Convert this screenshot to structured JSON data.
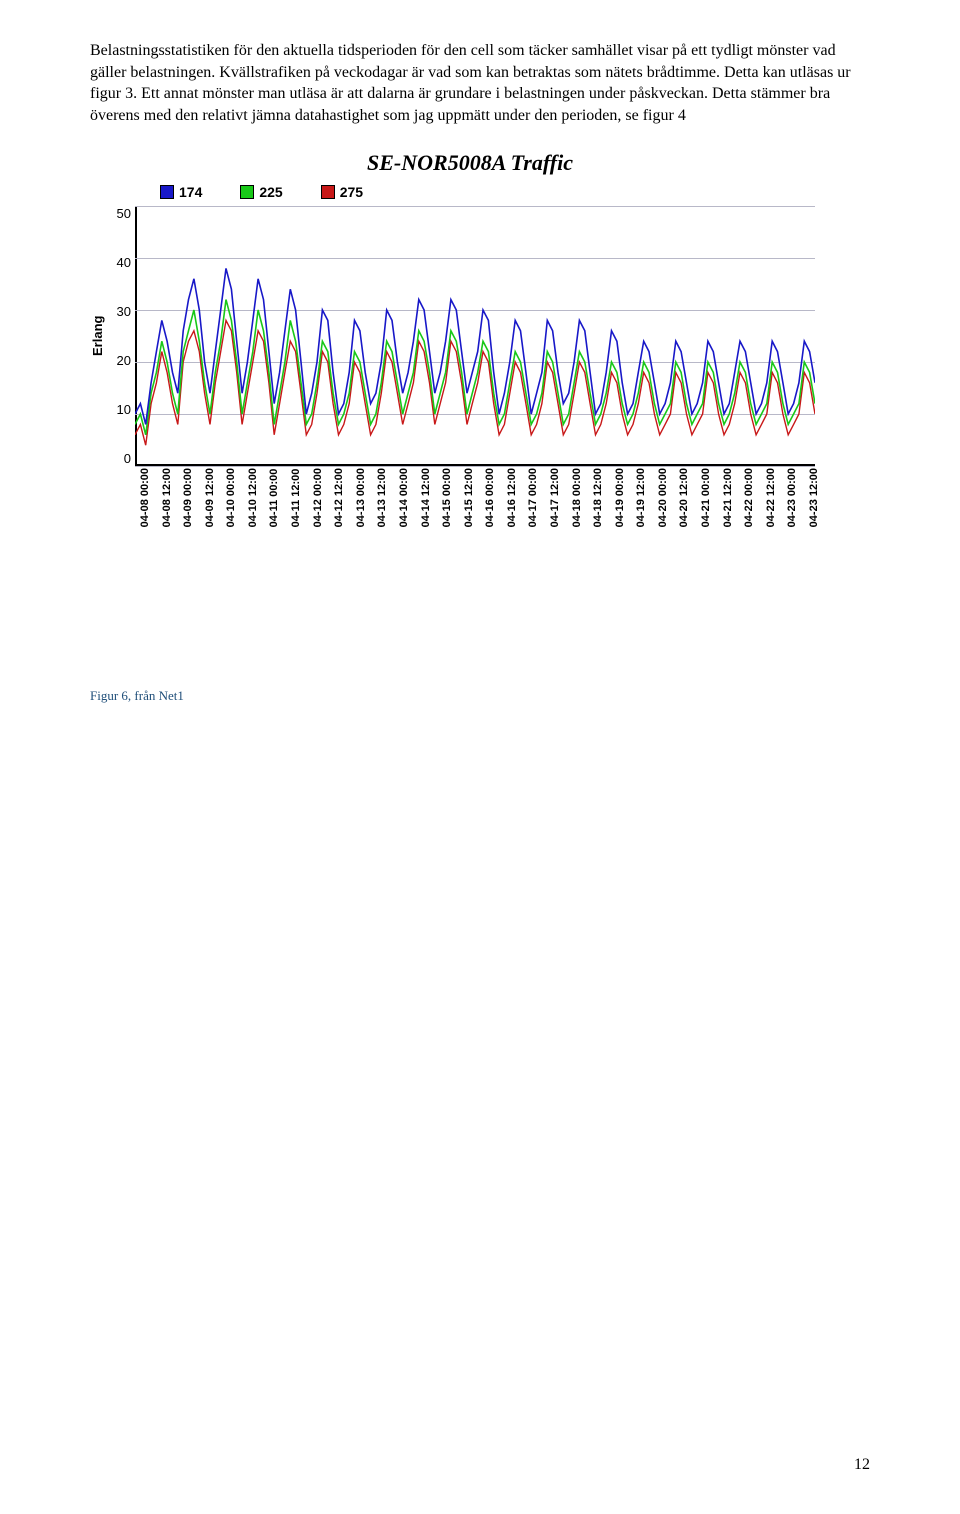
{
  "paragraph": "Belastningsstatistiken för den aktuella tidsperioden för den cell som täcker samhället visar på ett tydligt mönster vad gäller belastningen. Kvällstrafiken på veckodagar är vad som kan betraktas som nätets brådtimme. Detta kan utläsas ur figur 3. Ett annat mönster man utläsa är att dalarna är grundare i belastningen under påskveckan. Detta stämmer bra överens med den relativt jämna datahastighet som jag uppmätt under den perioden, se figur 4",
  "chart": {
    "title": "SE-NOR5008A Traffic",
    "ylabel": "Erlang",
    "ylim": [
      0,
      50
    ],
    "ytick_step": 10,
    "yticks": [
      "50",
      "40",
      "30",
      "20",
      "10",
      "0"
    ],
    "grid_color": "#b8b8c8",
    "background_color": "#ffffff",
    "legend": [
      {
        "label": "174",
        "color": "#1818c8"
      },
      {
        "label": "225",
        "color": "#18c818"
      },
      {
        "label": "275",
        "color": "#c81818"
      }
    ],
    "xticks": [
      "04-08 00:00",
      "04-08 12:00",
      "04-09 00:00",
      "04-09 12:00",
      "04-10 00:00",
      "04-10 12:00",
      "04-11 00:00",
      "04-11 12:00",
      "04-12 00:00",
      "04-12 12:00",
      "04-13 00:00",
      "04-13 12:00",
      "04-14 00:00",
      "04-14 12:00",
      "04-15 00:00",
      "04-15 12:00",
      "04-16 00:00",
      "04-16 12:00",
      "04-17 00:00",
      "04-17 12:00",
      "04-18 00:00",
      "04-18 12:00",
      "04-19 00:00",
      "04-19 12:00",
      "04-20 00:00",
      "04-20 12:00",
      "04-21 00:00",
      "04-21 12:00",
      "04-22 00:00",
      "04-22 12:00",
      "04-23 00:00",
      "04-23 12:00"
    ],
    "series": {
      "s174": {
        "color": "#1818c8",
        "width": 1.6,
        "values": [
          10,
          12,
          8,
          16,
          22,
          28,
          24,
          18,
          14,
          26,
          32,
          36,
          30,
          20,
          14,
          22,
          30,
          38,
          34,
          24,
          14,
          20,
          28,
          36,
          32,
          22,
          12,
          18,
          26,
          34,
          30,
          20,
          10,
          14,
          20,
          30,
          28,
          18,
          10,
          12,
          18,
          28,
          26,
          18,
          12,
          14,
          20,
          30,
          28,
          20,
          14,
          18,
          24,
          32,
          30,
          22,
          14,
          18,
          24,
          32,
          30,
          22,
          14,
          18,
          22,
          30,
          28,
          18,
          10,
          14,
          20,
          28,
          26,
          18,
          10,
          14,
          18,
          28,
          26,
          18,
          12,
          14,
          20,
          28,
          26,
          18,
          10,
          12,
          18,
          26,
          24,
          16,
          10,
          12,
          18,
          24,
          22,
          16,
          10,
          12,
          16,
          24,
          22,
          16,
          10,
          12,
          16,
          24,
          22,
          16,
          10,
          12,
          18,
          24,
          22,
          16,
          10,
          12,
          16,
          24,
          22,
          16,
          10,
          12,
          16,
          24,
          22,
          16
        ]
      },
      "s225": {
        "color": "#18c818",
        "width": 1.6,
        "values": [
          8,
          10,
          6,
          14,
          18,
          24,
          20,
          14,
          10,
          22,
          26,
          30,
          24,
          16,
          10,
          18,
          24,
          32,
          28,
          20,
          10,
          16,
          22,
          30,
          26,
          18,
          8,
          14,
          20,
          28,
          24,
          16,
          8,
          10,
          16,
          24,
          22,
          14,
          8,
          10,
          14,
          22,
          20,
          14,
          8,
          10,
          16,
          24,
          22,
          16,
          10,
          14,
          18,
          26,
          24,
          18,
          10,
          14,
          18,
          26,
          24,
          18,
          10,
          14,
          18,
          24,
          22,
          14,
          8,
          10,
          16,
          22,
          20,
          14,
          8,
          10,
          14,
          22,
          20,
          14,
          8,
          10,
          16,
          22,
          20,
          14,
          8,
          10,
          14,
          20,
          18,
          12,
          8,
          10,
          14,
          20,
          18,
          12,
          8,
          10,
          12,
          20,
          18,
          12,
          8,
          10,
          12,
          20,
          18,
          12,
          8,
          10,
          14,
          20,
          18,
          12,
          8,
          10,
          12,
          20,
          18,
          12,
          8,
          10,
          12,
          20,
          18,
          12
        ]
      },
      "s275": {
        "color": "#c81818",
        "width": 1.4,
        "values": [
          6,
          8,
          4,
          12,
          16,
          22,
          18,
          12,
          8,
          20,
          24,
          26,
          22,
          14,
          8,
          16,
          22,
          28,
          26,
          18,
          8,
          14,
          20,
          26,
          24,
          16,
          6,
          12,
          18,
          24,
          22,
          14,
          6,
          8,
          14,
          22,
          20,
          12,
          6,
          8,
          12,
          20,
          18,
          12,
          6,
          8,
          14,
          22,
          20,
          14,
          8,
          12,
          16,
          24,
          22,
          16,
          8,
          12,
          16,
          24,
          22,
          16,
          8,
          12,
          16,
          22,
          20,
          12,
          6,
          8,
          14,
          20,
          18,
          12,
          6,
          8,
          12,
          20,
          18,
          12,
          6,
          8,
          14,
          20,
          18,
          12,
          6,
          8,
          12,
          18,
          16,
          10,
          6,
          8,
          12,
          18,
          16,
          10,
          6,
          8,
          10,
          18,
          16,
          10,
          6,
          8,
          10,
          18,
          16,
          10,
          6,
          8,
          12,
          18,
          16,
          10,
          6,
          8,
          10,
          18,
          16,
          10,
          6,
          8,
          10,
          18,
          16,
          10
        ]
      }
    }
  },
  "caption": "Figur 6, från Net1",
  "page_number": "12"
}
